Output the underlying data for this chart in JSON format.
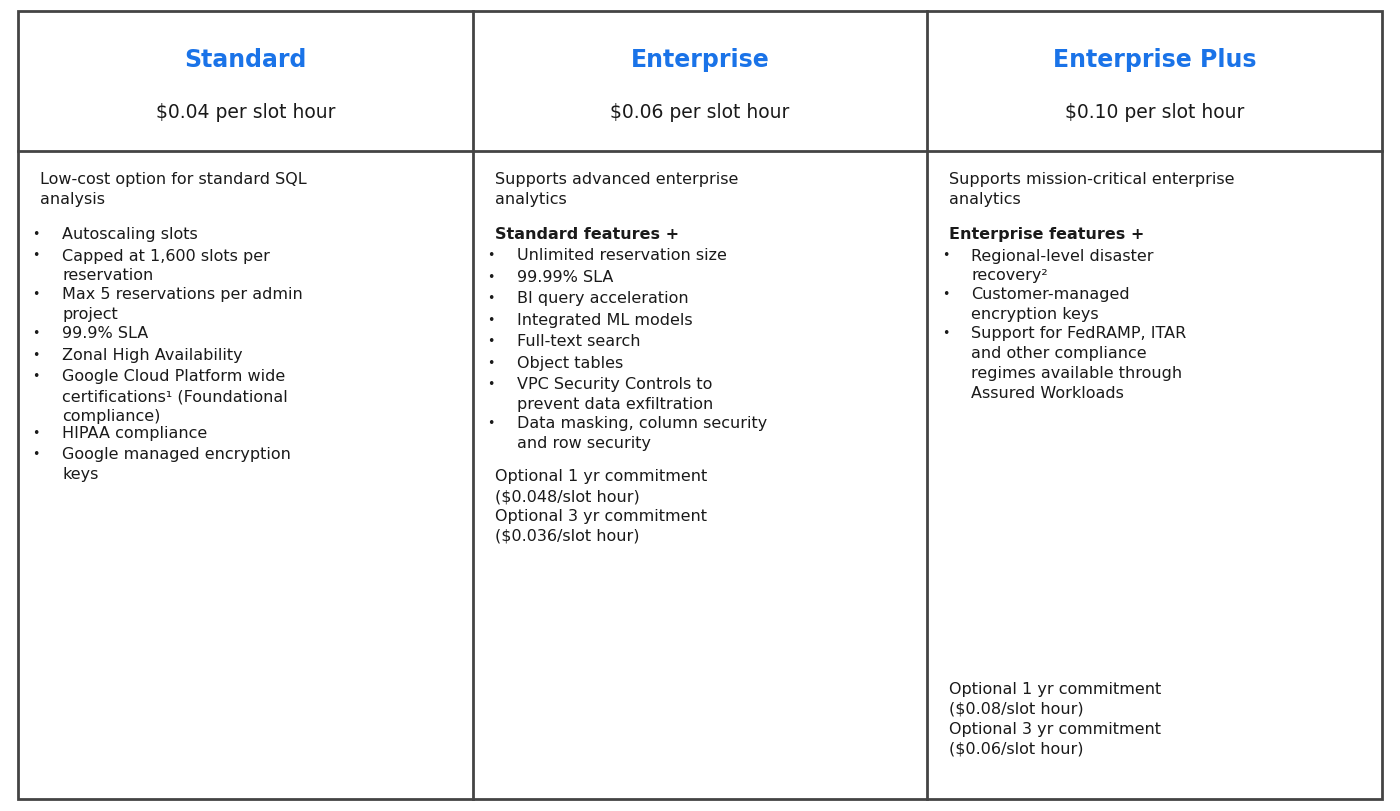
{
  "background_color": "#ffffff",
  "border_color": "#444444",
  "header_title_color": "#1a73e8",
  "body_text_color": "#1a1a1a",
  "fig_width": 14.0,
  "fig_height": 8.12,
  "columns": [
    "Standard",
    "Enterprise",
    "Enterprise Plus"
  ],
  "prices": [
    "$0.04 per slot hour",
    "$0.06 per slot hour",
    "$0.10 per slot hour"
  ],
  "col1_intro": "Low-cost option for standard SQL\nanalysis",
  "col1_bullets": [
    "Autoscaling slots",
    "Capped at 1,600 slots per\nreservation",
    "Max 5 reservations per admin\nproject",
    "99.9% SLA",
    "Zonal High Availability",
    "Google Cloud Platform wide\ncertifications¹ (Foundational\ncompliance)",
    "HIPAA compliance",
    "Google managed encryption\nkeys"
  ],
  "col1_footer": "",
  "col2_intro": "Supports advanced enterprise\nanalytics",
  "col2_bold": "Standard features +",
  "col2_bullets": [
    "Unlimited reservation size",
    "99.99% SLA",
    "BI query acceleration",
    "Integrated ML models",
    "Full-text search",
    "Object tables",
    "VPC Security Controls to\nprevent data exfiltration",
    "Data masking, column security\nand row security"
  ],
  "col2_footer": "Optional 1 yr commitment\n($0.048/slot hour)\nOptional 3 yr commitment\n($0.036/slot hour)",
  "col3_intro": "Supports mission-critical enterprise\nanalytics",
  "col3_bold": "Enterprise features +",
  "col3_bullets": [
    "Regional-level disaster\nrecovery²",
    "Customer-managed\nencryption keys",
    "Support for FedRAMP, ITAR\nand other compliance\nregimes available through\nAssured Workloads"
  ],
  "col3_footer": "Optional 1 yr commitment\n($0.08/slot hour)\nOptional 3 yr commitment\n($0.06/slot hour)"
}
